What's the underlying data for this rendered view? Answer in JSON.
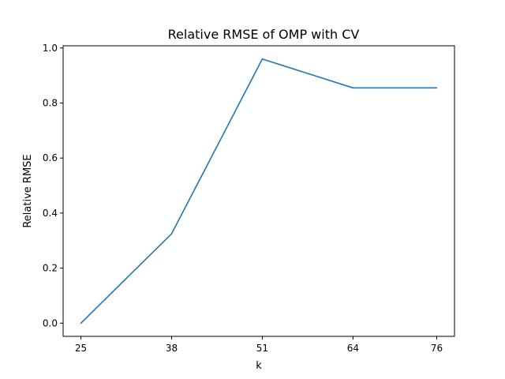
{
  "chart_data": {
    "type": "line",
    "title": "Relative RMSE of OMP with CV",
    "xlabel": "k",
    "ylabel": "Relative RMSE",
    "x": [
      25,
      38,
      51,
      64,
      76
    ],
    "xtick_labels": [
      "25",
      "38",
      "51",
      "64",
      "76"
    ],
    "series": [
      {
        "values": [
          0.0,
          0.325,
          0.96,
          0.855,
          0.855
        ],
        "color": "#1f77b4"
      }
    ],
    "xlim": [
      22.45,
      78.55
    ],
    "ylim": [
      -0.048,
      1.008
    ],
    "yticks": [
      0.0,
      0.2,
      0.4,
      0.6,
      0.8,
      1.0
    ],
    "ytick_labels": [
      "0.0",
      "0.2",
      "0.4",
      "0.6",
      "0.8",
      "1.0"
    ],
    "grid": false,
    "legend": "none"
  }
}
